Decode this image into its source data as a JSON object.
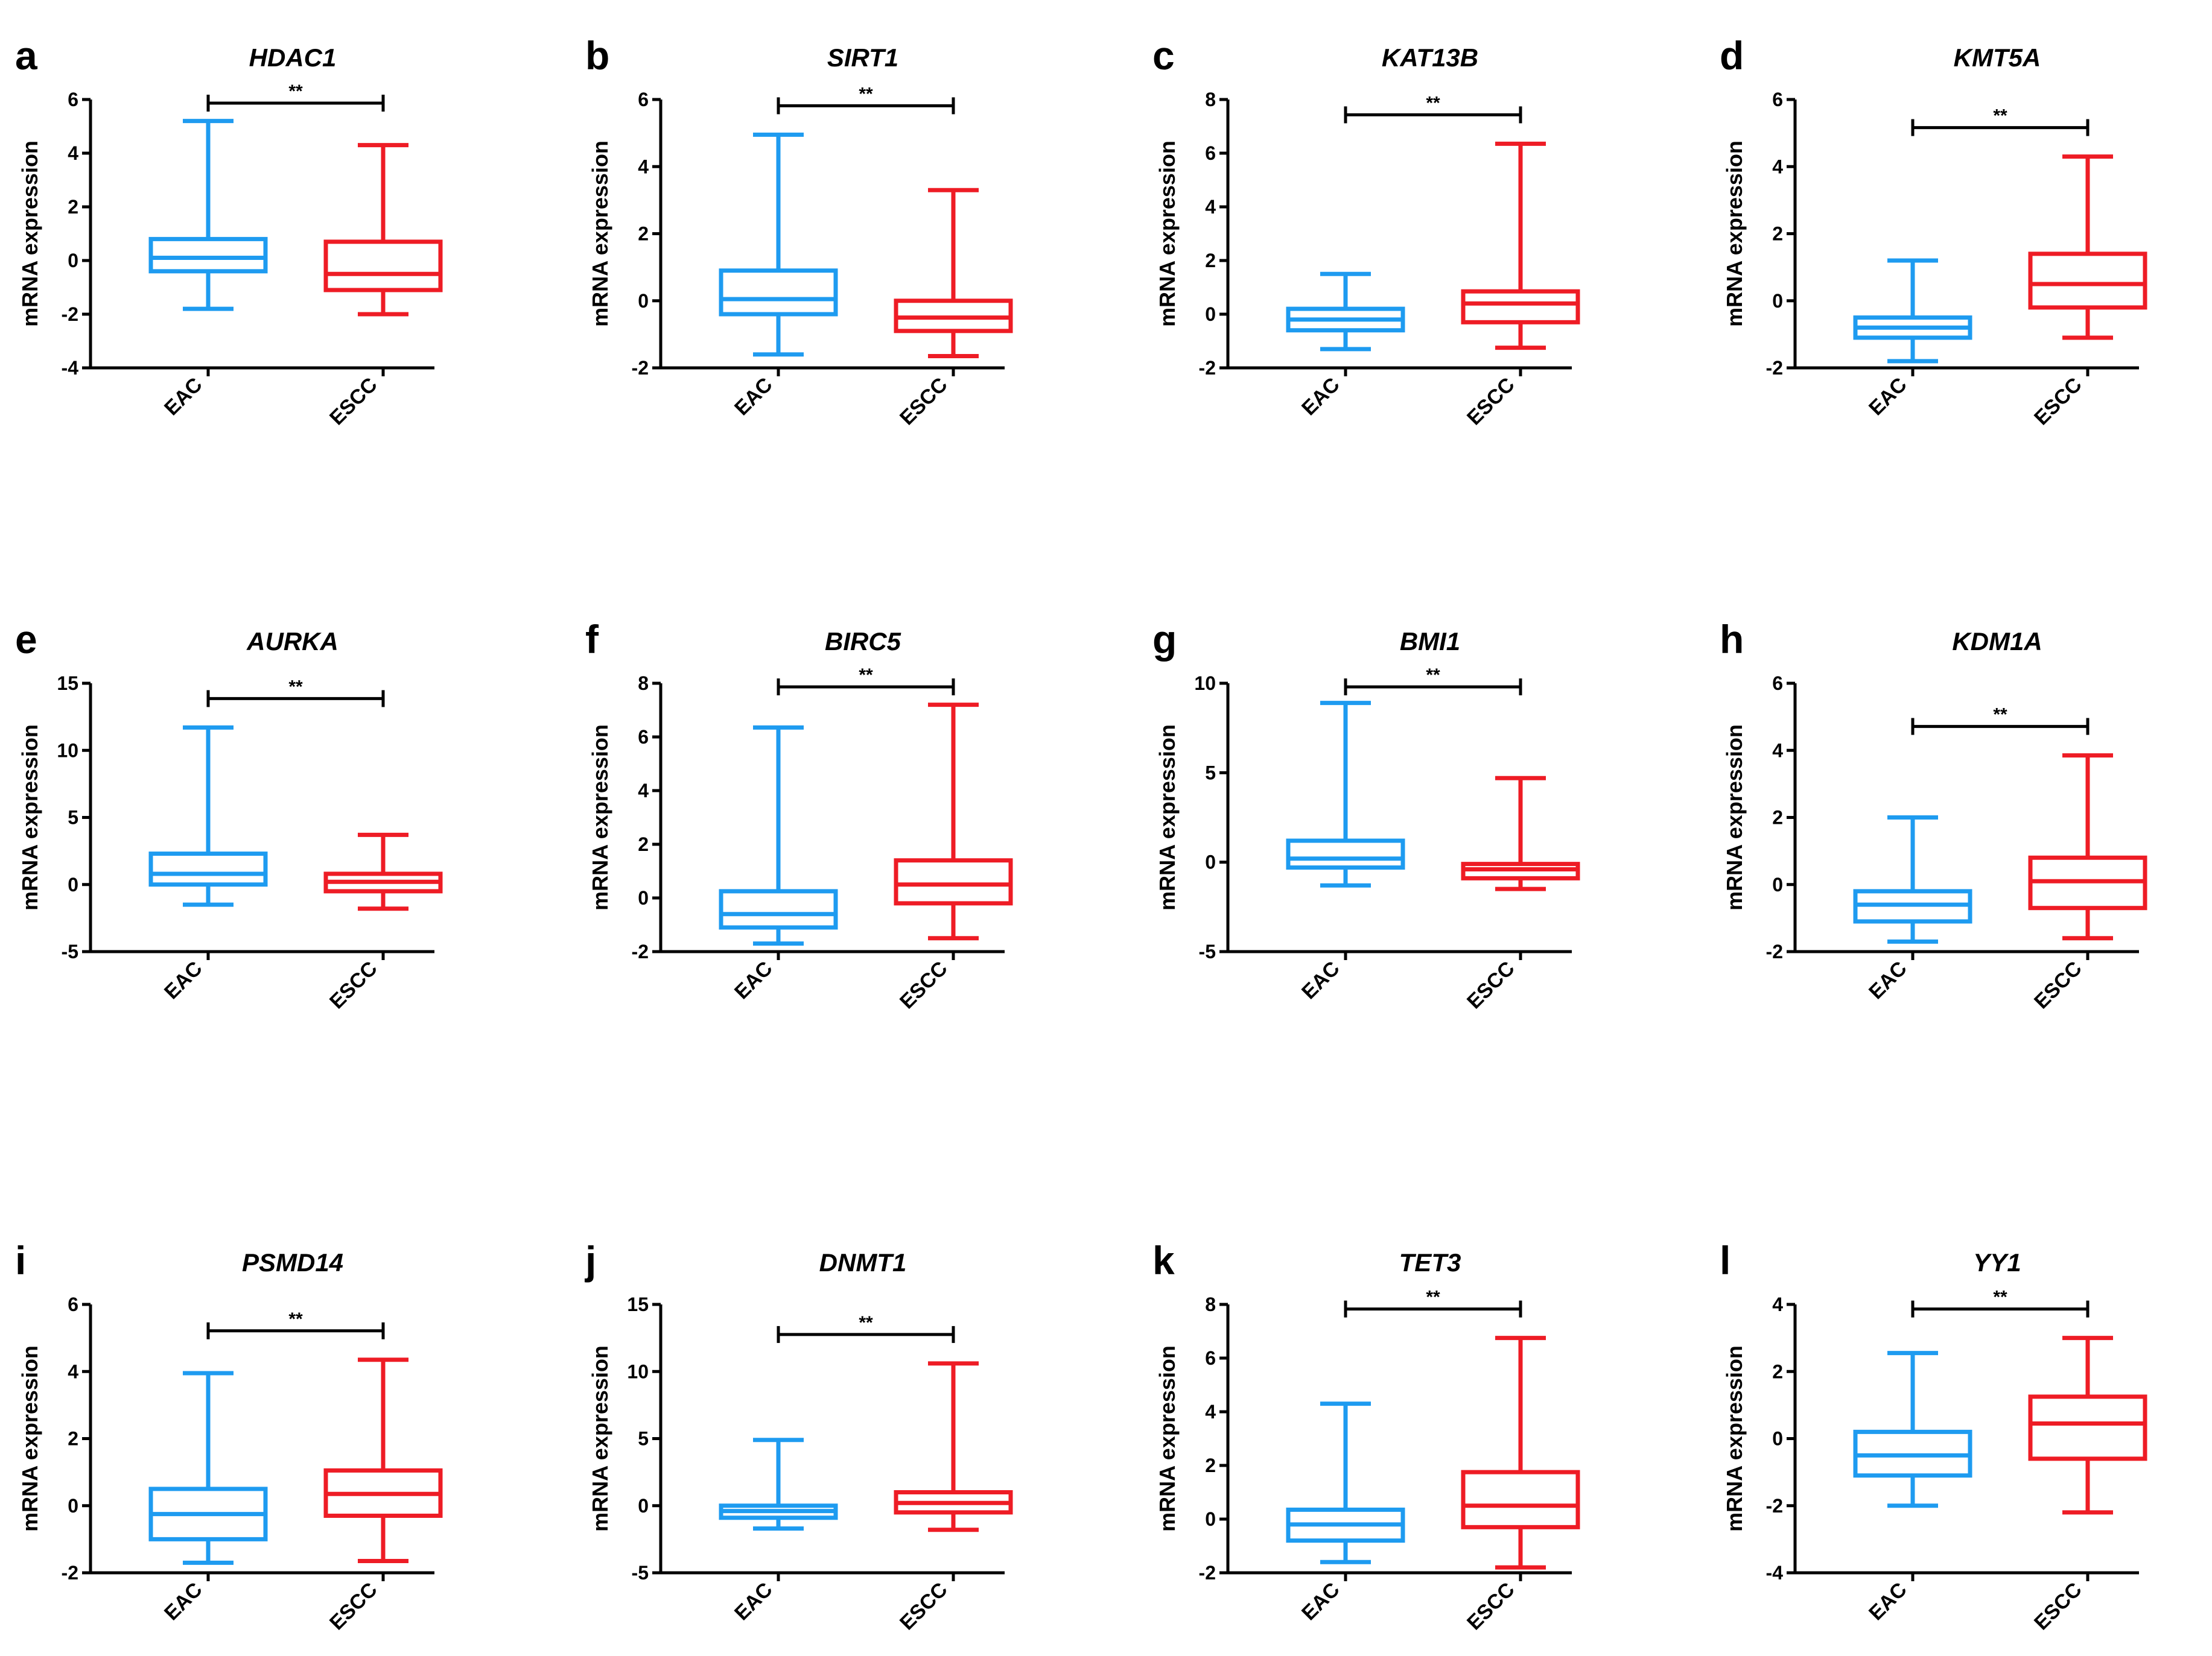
{
  "colors": {
    "EAC": "#1E9BF0",
    "ESCC": "#EE1C25",
    "axis": "#000000"
  },
  "y_axis_label": "mRNA expression",
  "categories": [
    "EAC",
    "ESCC"
  ],
  "chart_data": [
    {
      "letter": "a",
      "title": "HDAC1",
      "type": "box",
      "ylabel": "mRNA expression",
      "ylim": [
        -4,
        6
      ],
      "ticks": [
        -4,
        -2,
        0,
        2,
        4,
        6
      ],
      "significance": "**",
      "categories": [
        "EAC",
        "ESCC"
      ],
      "boxes": [
        {
          "name": "EAC",
          "min": -1.8,
          "q1": -0.4,
          "median": 0.1,
          "q3": 0.8,
          "max": 5.2
        },
        {
          "name": "ESCC",
          "min": -2.0,
          "q1": -1.1,
          "median": -0.5,
          "q3": 0.7,
          "max": 4.3
        }
      ]
    },
    {
      "letter": "b",
      "title": "SIRT1",
      "type": "box",
      "ylabel": "mRNA expression",
      "ylim": [
        -2,
        6
      ],
      "ticks": [
        -2,
        0,
        2,
        4,
        6
      ],
      "significance": "**",
      "categories": [
        "EAC",
        "ESCC"
      ],
      "boxes": [
        {
          "name": "EAC",
          "min": -1.6,
          "q1": -0.4,
          "median": 0.05,
          "q3": 0.9,
          "max": 4.95
        },
        {
          "name": "ESCC",
          "min": -1.65,
          "q1": -0.9,
          "median": -0.5,
          "q3": 0.0,
          "max": 3.3
        }
      ]
    },
    {
      "letter": "c",
      "title": "KAT13B",
      "type": "box",
      "ylabel": "mRNA expression",
      "ylim": [
        -2,
        8
      ],
      "ticks": [
        -2,
        0,
        2,
        4,
        6,
        8
      ],
      "significance": "**",
      "categories": [
        "EAC",
        "ESCC"
      ],
      "boxes": [
        {
          "name": "EAC",
          "min": -1.3,
          "q1": -0.6,
          "median": -0.2,
          "q3": 0.2,
          "max": 1.5
        },
        {
          "name": "ESCC",
          "min": -1.25,
          "q1": -0.3,
          "median": 0.4,
          "q3": 0.85,
          "max": 6.35
        }
      ]
    },
    {
      "letter": "d",
      "title": "KMT5A",
      "type": "box",
      "ylabel": "mRNA expression",
      "ylim": [
        -2,
        6
      ],
      "ticks": [
        -2,
        0,
        2,
        4,
        6
      ],
      "significance": "**",
      "categories": [
        "EAC",
        "ESCC"
      ],
      "boxes": [
        {
          "name": "EAC",
          "min": -1.8,
          "q1": -1.1,
          "median": -0.8,
          "q3": -0.5,
          "max": 1.2
        },
        {
          "name": "ESCC",
          "min": -1.1,
          "q1": -0.2,
          "median": 0.5,
          "q3": 1.4,
          "max": 4.3
        }
      ]
    },
    {
      "letter": "e",
      "title": "AURKA",
      "type": "box",
      "ylabel": "mRNA expression",
      "ylim": [
        -5,
        15
      ],
      "ticks": [
        -5,
        0,
        5,
        10,
        15
      ],
      "significance": "**",
      "categories": [
        "EAC",
        "ESCC"
      ],
      "boxes": [
        {
          "name": "EAC",
          "min": -1.5,
          "q1": 0.0,
          "median": 0.8,
          "q3": 2.3,
          "max": 11.7
        },
        {
          "name": "ESCC",
          "min": -1.8,
          "q1": -0.5,
          "median": 0.2,
          "q3": 0.8,
          "max": 3.7
        }
      ]
    },
    {
      "letter": "f",
      "title": "BIRC5",
      "type": "box",
      "ylabel": "mRNA expression",
      "ylim": [
        -2,
        8
      ],
      "ticks": [
        -2,
        0,
        2,
        4,
        6,
        8
      ],
      "significance": "**",
      "categories": [
        "EAC",
        "ESCC"
      ],
      "boxes": [
        {
          "name": "EAC",
          "min": -1.7,
          "q1": -1.1,
          "median": -0.6,
          "q3": 0.25,
          "max": 6.35
        },
        {
          "name": "ESCC",
          "min": -1.5,
          "q1": -0.2,
          "median": 0.5,
          "q3": 1.4,
          "max": 7.2
        }
      ]
    },
    {
      "letter": "g",
      "title": "BMI1",
      "type": "box",
      "ylabel": "mRNA expression",
      "ylim": [
        -5,
        10
      ],
      "ticks": [
        -5,
        0,
        5,
        10
      ],
      "significance": "**",
      "categories": [
        "EAC",
        "ESCC"
      ],
      "boxes": [
        {
          "name": "EAC",
          "min": -1.3,
          "q1": -0.3,
          "median": 0.2,
          "q3": 1.2,
          "max": 8.9
        },
        {
          "name": "ESCC",
          "min": -1.5,
          "q1": -0.9,
          "median": -0.4,
          "q3": -0.1,
          "max": 4.7
        }
      ]
    },
    {
      "letter": "h",
      "title": "KDM1A",
      "type": "box",
      "ylabel": "mRNA expression",
      "ylim": [
        -2,
        6
      ],
      "ticks": [
        -2,
        0,
        2,
        4,
        6
      ],
      "significance": "**",
      "categories": [
        "EAC",
        "ESCC"
      ],
      "boxes": [
        {
          "name": "EAC",
          "min": -1.7,
          "q1": -1.1,
          "median": -0.6,
          "q3": -0.2,
          "max": 2.0
        },
        {
          "name": "ESCC",
          "min": -1.6,
          "q1": -0.7,
          "median": 0.1,
          "q3": 0.8,
          "max": 3.85
        }
      ]
    },
    {
      "letter": "i",
      "title": "PSMD14",
      "type": "box",
      "ylabel": "mRNA expression",
      "ylim": [
        -2,
        6
      ],
      "ticks": [
        -2,
        0,
        2,
        4,
        6
      ],
      "significance": "**",
      "categories": [
        "EAC",
        "ESCC"
      ],
      "boxes": [
        {
          "name": "EAC",
          "min": -1.7,
          "q1": -1.0,
          "median": -0.25,
          "q3": 0.5,
          "max": 3.95
        },
        {
          "name": "ESCC",
          "min": -1.65,
          "q1": -0.3,
          "median": 0.35,
          "q3": 1.05,
          "max": 4.35
        }
      ]
    },
    {
      "letter": "j",
      "title": "DNMT1",
      "type": "box",
      "ylabel": "mRNA expression",
      "ylim": [
        -5,
        15
      ],
      "ticks": [
        -5,
        0,
        5,
        10,
        15
      ],
      "significance": "**",
      "categories": [
        "EAC",
        "ESCC"
      ],
      "boxes": [
        {
          "name": "EAC",
          "min": -1.7,
          "q1": -0.9,
          "median": -0.4,
          "q3": 0.0,
          "max": 4.9
        },
        {
          "name": "ESCC",
          "min": -1.8,
          "q1": -0.5,
          "median": 0.2,
          "q3": 1.0,
          "max": 10.6
        }
      ]
    },
    {
      "letter": "k",
      "title": "TET3",
      "type": "box",
      "ylabel": "mRNA expression",
      "ylim": [
        -2,
        8
      ],
      "ticks": [
        -2,
        0,
        2,
        4,
        6,
        8
      ],
      "significance": "**",
      "categories": [
        "EAC",
        "ESCC"
      ],
      "boxes": [
        {
          "name": "EAC",
          "min": -1.6,
          "q1": -0.8,
          "median": -0.2,
          "q3": 0.35,
          "max": 4.3
        },
        {
          "name": "ESCC",
          "min": -1.8,
          "q1": -0.3,
          "median": 0.5,
          "q3": 1.75,
          "max": 6.75
        }
      ]
    },
    {
      "letter": "l",
      "title": "YY1",
      "type": "box",
      "ylabel": "mRNA expression",
      "ylim": [
        -4,
        4
      ],
      "ticks": [
        -4,
        -2,
        0,
        2,
        4
      ],
      "significance": "**",
      "categories": [
        "EAC",
        "ESCC"
      ],
      "boxes": [
        {
          "name": "EAC",
          "min": -2.0,
          "q1": -1.1,
          "median": -0.5,
          "q3": 0.2,
          "max": 2.55
        },
        {
          "name": "ESCC",
          "min": -2.2,
          "q1": -0.6,
          "median": 0.45,
          "q3": 1.25,
          "max": 3.0
        }
      ]
    }
  ]
}
